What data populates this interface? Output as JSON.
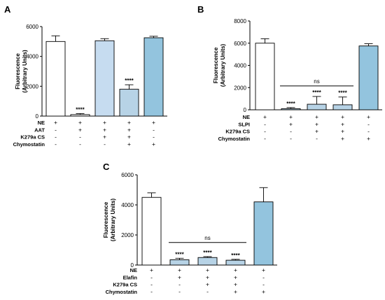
{
  "chart_data": [
    {
      "type": "bar",
      "panel": "A",
      "ylabel": "Fluorescence\n(Arbitrary Units)",
      "ylim": [
        0,
        6000
      ],
      "yticks": [
        0,
        2000,
        4000,
        6000
      ],
      "values": [
        5000,
        100,
        5050,
        1800,
        5250
      ],
      "errors": [
        380,
        70,
        140,
        300,
        100
      ],
      "colors": [
        "#ffffff",
        "#ffffff",
        "#c6dcf0",
        "#b7d3e6",
        "#93c4de"
      ],
      "annotations": [
        "",
        "****",
        "",
        "****",
        ""
      ],
      "ns": null,
      "rows": [
        {
          "label": "NE",
          "signs": [
            "+",
            "+",
            "+",
            "+",
            "+"
          ]
        },
        {
          "label": "AAT",
          "signs": [
            "-",
            "+",
            "+",
            "+",
            "-"
          ]
        },
        {
          "label": "K279a CS",
          "signs": [
            "-",
            "-",
            "+",
            "+",
            "-"
          ]
        },
        {
          "label": "Chymostatin",
          "signs": [
            "-",
            "-",
            "-",
            "+",
            "+"
          ]
        }
      ]
    },
    {
      "type": "bar",
      "panel": "B",
      "ylabel": "Fluorescence\n(Arbitrary Units)",
      "ylim": [
        0,
        8000
      ],
      "yticks": [
        0,
        2000,
        4000,
        6000,
        8000
      ],
      "values": [
        6000,
        100,
        500,
        450,
        5750
      ],
      "errors": [
        400,
        100,
        700,
        700,
        200
      ],
      "colors": [
        "#ffffff",
        "#b7d3e6",
        "#b7d3e6",
        "#b7d3e6",
        "#93c4de"
      ],
      "annotations": [
        "",
        "****",
        "****",
        "****",
        ""
      ],
      "ns": {
        "label": "ns",
        "from": 1,
        "to": 3,
        "y": 2150
      },
      "rows": [
        {
          "label": "NE",
          "signs": [
            "+",
            "+",
            "+",
            "+",
            "+"
          ]
        },
        {
          "label": "SLPI",
          "signs": [
            "-",
            "+",
            "+",
            "+",
            "-"
          ]
        },
        {
          "label": "K279a CS",
          "signs": [
            "-",
            "-",
            "+",
            "+",
            "-"
          ]
        },
        {
          "label": "Chymostatin",
          "signs": [
            "-",
            "-",
            "-",
            "+",
            "+"
          ]
        }
      ]
    },
    {
      "type": "bar",
      "panel": "C",
      "ylabel": "Fluorescence\n(Arbitrary Units)",
      "ylim": [
        0,
        6000
      ],
      "yticks": [
        0,
        2000,
        4000,
        6000
      ],
      "values": [
        4500,
        350,
        500,
        320,
        4200
      ],
      "errors": [
        300,
        100,
        60,
        60,
        950
      ],
      "colors": [
        "#ffffff",
        "#b7d3e6",
        "#b7d3e6",
        "#b7d3e6",
        "#93c4de"
      ],
      "annotations": [
        "",
        "****",
        "****",
        "****",
        ""
      ],
      "ns": {
        "label": "ns",
        "from": 1,
        "to": 3,
        "y": 1500
      },
      "rows": [
        {
          "label": "NE",
          "signs": [
            "+",
            "+",
            "+",
            "+",
            "+"
          ]
        },
        {
          "label": "Elafin",
          "signs": [
            "-",
            "+",
            "+",
            "+",
            "-"
          ]
        },
        {
          "label": "K279a CS",
          "signs": [
            "-",
            "-",
            "+",
            "+",
            "-"
          ]
        },
        {
          "label": "Chymostatin",
          "signs": [
            "-",
            "-",
            "-",
            "+",
            "+"
          ]
        }
      ]
    }
  ]
}
